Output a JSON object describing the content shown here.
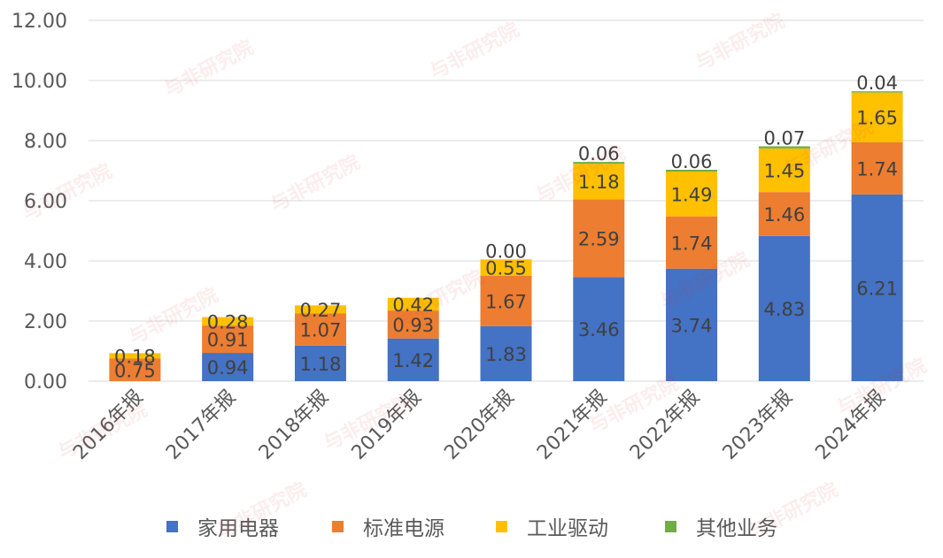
{
  "chart_data": {
    "type": "bar",
    "stacked": true,
    "categories": [
      "2016年报",
      "2017年报",
      "2018年报",
      "2019年报",
      "2020年报",
      "2021年报",
      "2022年报",
      "2023年报",
      "2024年报"
    ],
    "series": [
      {
        "name": "家用电器",
        "color": "#4472C4",
        "values": [
          0,
          0.94,
          1.18,
          1.42,
          1.83,
          3.46,
          3.74,
          4.83,
          6.21
        ],
        "labels": [
          "",
          "0.94",
          "1.18",
          "1.42",
          "1.83",
          "3.46",
          "3.74",
          "4.83",
          "6.21"
        ]
      },
      {
        "name": "标准电源",
        "color": "#ED7D31",
        "values": [
          0.75,
          0.91,
          1.07,
          0.93,
          1.67,
          2.59,
          1.74,
          1.46,
          1.74
        ],
        "labels": [
          "0.75",
          "0.91",
          "1.07",
          "0.93",
          "1.67",
          "2.59",
          "1.74",
          "1.46",
          "1.74"
        ]
      },
      {
        "name": "工业驱动",
        "color": "#FFC000",
        "values": [
          0.18,
          0.28,
          0.27,
          0.42,
          0.55,
          1.18,
          1.49,
          1.45,
          1.65
        ],
        "labels": [
          "0.18",
          "0.28",
          "0.27",
          "0.42",
          "0.55",
          "1.18",
          "1.49",
          "1.45",
          "1.65"
        ]
      },
      {
        "name": "其他业务",
        "color": "#70AD47",
        "values": [
          0,
          0,
          0,
          0,
          0.0,
          0.06,
          0.06,
          0.07,
          0.04
        ],
        "labels": [
          "",
          "",
          "",
          "",
          "0.00",
          "0.06",
          "0.06",
          "0.07",
          "0.04"
        ]
      }
    ],
    "y_ticks": [
      "0.00",
      "2.00",
      "4.00",
      "6.00",
      "8.00",
      "10.00",
      "12.00"
    ],
    "ylim": [
      0,
      12
    ],
    "grid": true,
    "legend_position": "bottom"
  },
  "watermark": {
    "text": "与非研究院",
    "color": "#DC3C3C"
  }
}
